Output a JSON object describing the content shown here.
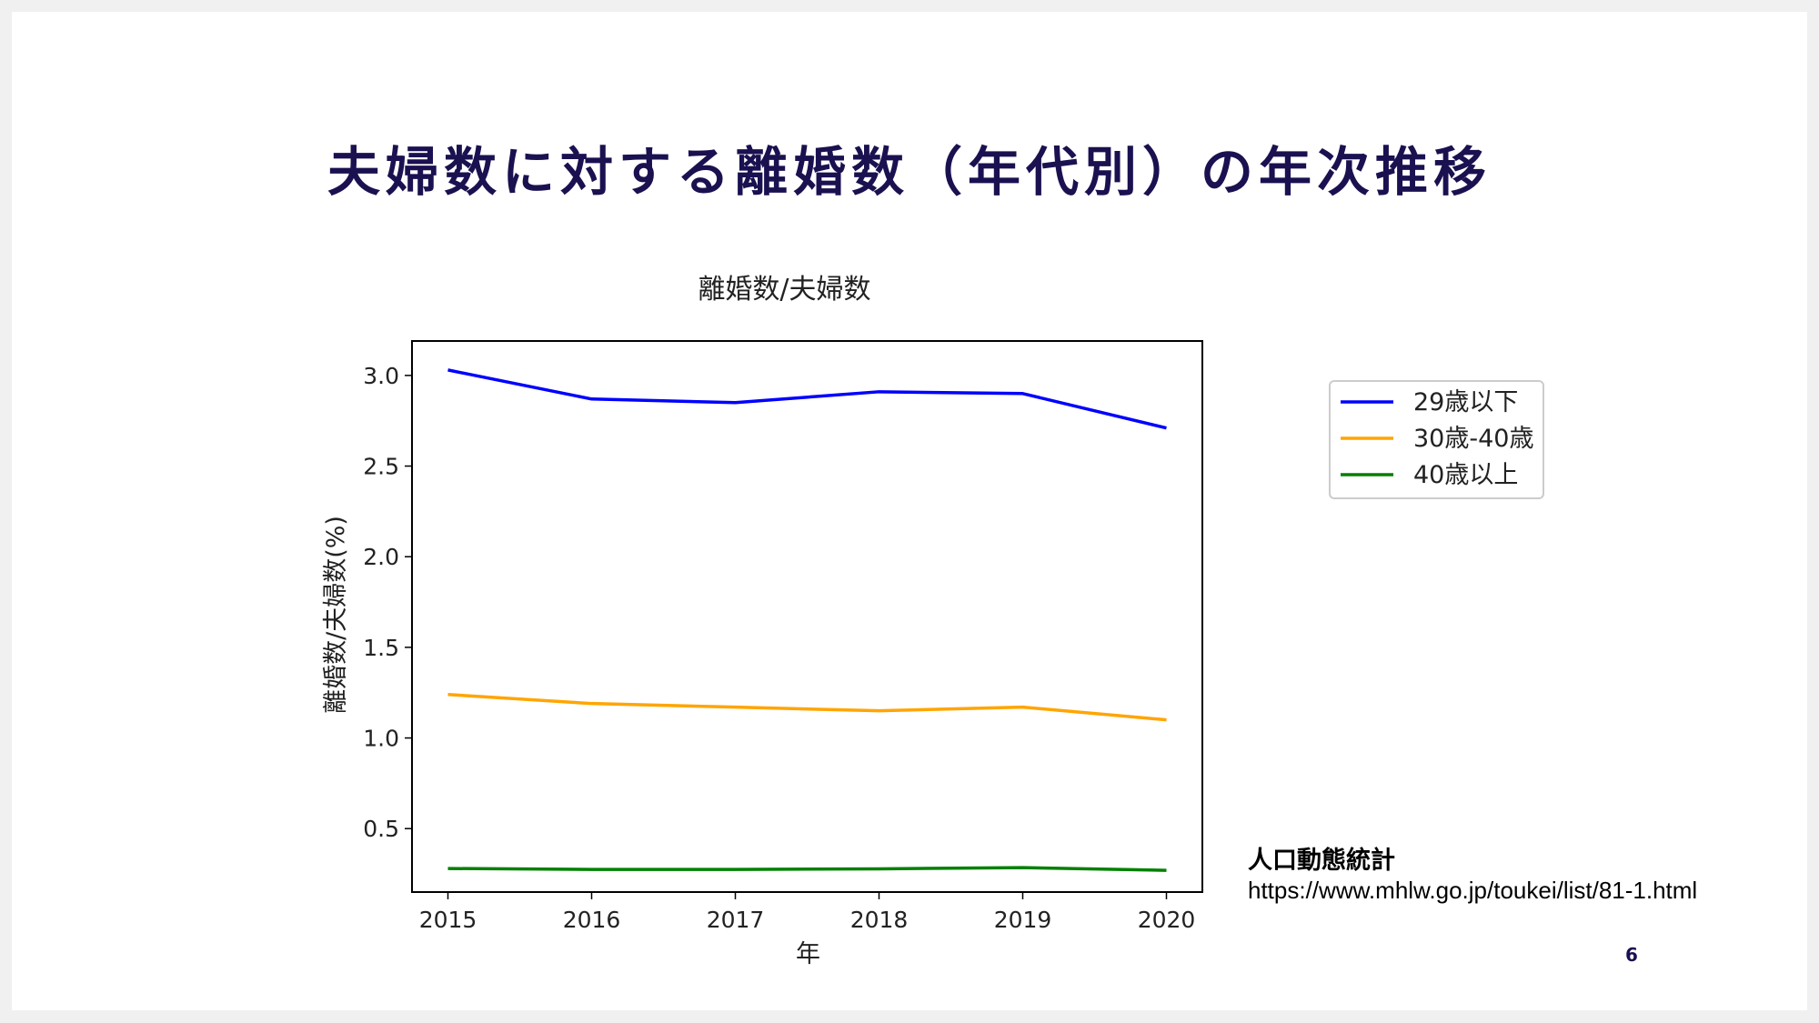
{
  "slide": {
    "title": "夫婦数に対する離婚数（年代別）の年次推移",
    "page_number": "6",
    "source_title": "人口動態統計",
    "source_url": "https://www.mhlw.go.jp/toukei/list/81-1.html"
  },
  "colors": {
    "title": "#1a1150",
    "series": [
      "#0000ff",
      "#ffa500",
      "#008000"
    ]
  },
  "chart_data": {
    "type": "line",
    "title": "離婚数/夫婦数",
    "xlabel": "年",
    "ylabel": "離婚数/夫婦数(%)",
    "x": [
      2015,
      2016,
      2017,
      2018,
      2019,
      2020
    ],
    "xticks": [
      "2015",
      "2016",
      "2017",
      "2018",
      "2019",
      "2020"
    ],
    "yticks": [
      "0.5",
      "1.0",
      "1.5",
      "2.0",
      "2.5",
      "3.0"
    ],
    "ytick_values": [
      0.5,
      1.0,
      1.5,
      2.0,
      2.5,
      3.0
    ],
    "ylim": [
      0.15,
      3.19
    ],
    "xlim": [
      2014.75,
      2020.25
    ],
    "legend_position": "upper-right, outside plot",
    "series": [
      {
        "name": "29歳以下",
        "values": [
          3.03,
          2.87,
          2.85,
          2.91,
          2.9,
          2.71
        ]
      },
      {
        "name": "30歳-40歳",
        "values": [
          1.24,
          1.19,
          1.17,
          1.15,
          1.17,
          1.1
        ]
      },
      {
        "name": "40歳以上",
        "values": [
          0.28,
          0.275,
          0.275,
          0.278,
          0.285,
          0.27
        ]
      }
    ]
  }
}
